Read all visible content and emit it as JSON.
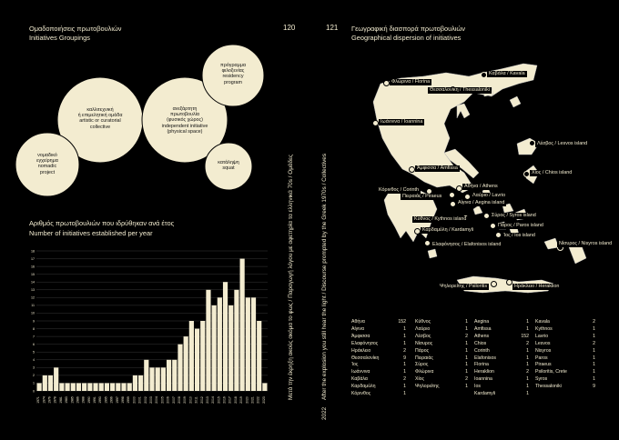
{
  "left": {
    "page_number": "120",
    "title_gr": "Ομαδοποιήσεις πρωτοβουλιών",
    "title_en": "Initiatives Groupings",
    "venn": [
      {
        "lines": [
          "καλλιτεχνική",
          "ή επιμελητική ομάδα",
          "artistic or curatorial",
          "collective"
        ]
      },
      {
        "lines": [
          "ανεξάρτητη",
          "πρωτοβουλία",
          "(φυσικός χώρος)",
          "independent initiative",
          "(physical space)"
        ]
      },
      {
        "lines": [
          "πρόγραμμα",
          "φιλοξενίας",
          "residency",
          "program"
        ]
      },
      {
        "lines": [
          "νομαδικό",
          "εγχείρημα",
          "nomadic",
          "project"
        ]
      },
      {
        "lines": [
          "κατάληψη",
          "squat"
        ]
      }
    ],
    "chart_title_gr": "Αριθμός πρωτοβουλιών που ιδρύθηκαν ανά έτος",
    "chart_title_en": "Number of initiatives established per year"
  },
  "chart_data": {
    "type": "bar",
    "title": "Number of initiatives established per year",
    "categories": [
      "1971",
      "1974",
      "1976",
      "1978",
      "1981",
      "1983",
      "1985",
      "1986",
      "1988",
      "1990",
      "1991",
      "1993",
      "1995",
      "1996",
      "1997",
      "1998",
      "1999",
      "2000",
      "2001",
      "2002",
      "2003",
      "2004",
      "2005",
      "2006",
      "2007",
      "2008",
      "2009",
      "2010",
      "2011",
      "2012",
      "2013",
      "2014",
      "2015",
      "2016",
      "2017",
      "2018",
      "2019",
      "2020",
      "2021",
      "2022",
      "2023"
    ],
    "values": [
      1,
      2,
      2,
      3,
      1,
      1,
      1,
      1,
      1,
      1,
      1,
      1,
      1,
      1,
      1,
      1,
      1,
      2,
      2,
      4,
      3,
      3,
      3,
      4,
      4,
      6,
      7,
      9,
      8,
      9,
      13,
      11,
      12,
      14,
      11,
      13,
      17,
      12,
      12,
      9,
      1
    ],
    "y_ticks": [
      "0",
      "1",
      "2",
      "3",
      "4",
      "5",
      "6",
      "7",
      "8",
      "9",
      "10",
      "11",
      "12",
      "13",
      "14",
      "15",
      "16",
      "17",
      "18"
    ],
    "ylim": [
      0,
      18
    ],
    "grid": true
  },
  "spine": {
    "text": "Μετά την έκρηξη ακούς ακόμα το φως / Παραγωγή λόγου με αφετηρία τα ελληνικά 70s / Ομάδες",
    "text_en": "After the explosion you still hear the light / Discourse prompted by the Greek 1970s / Collectives",
    "year": "2022"
  },
  "right": {
    "page_number": "121",
    "title_gr": "Γεωγραφική διασπορά πρωτοβουλιών",
    "title_en": "Geographical dispersion of initiatives",
    "map_labels": [
      "Φλώρινα / Florina",
      "Καβάλα / Kavala",
      "Θεσσαλονίκη / Thessaloniki",
      "Ιωάννινα / Ioannina",
      "Λέσβος / Lesvos island",
      "Χίος / Chios island",
      "Άμφισσα / Amfissa",
      "Κόρινθος / Corinth",
      "Αθήνα / Athens",
      "Πειραιάς / Piraeus",
      "Λαύριο / Lavrio",
      "Αίγινα / Aegina island",
      "Σύρος / Syros island",
      "Κύθνος / Kythnos island",
      "Πάρος / Paros island",
      "Καρδαμύλη / Kardamyli",
      "Ίος / Ios island",
      "Ελαφόνησος / Elafonisos island",
      "Νίσυρος / Nisyros island",
      "Ψηλορείτης / Psiloritis",
      "Ηράκλειο / Heraklion"
    ],
    "table": [
      [
        [
          "Αθήνα",
          "152"
        ],
        [
          "Αίγινα",
          "1"
        ],
        [
          "Άμφισσα",
          "1"
        ],
        [
          "Ελαφόνησος",
          "1"
        ],
        [
          "Ηράκλειο",
          "2"
        ],
        [
          "Θεσσαλονίκη",
          "9"
        ],
        [
          "Ίος",
          "1"
        ],
        [
          "Ιωάννινα",
          "1"
        ],
        [
          "Καβάλα",
          "2"
        ],
        [
          "Καρδαμύλη",
          "1"
        ],
        [
          "Κόρινθος",
          "1"
        ]
      ],
      [
        [
          "Κύθνος",
          "1"
        ],
        [
          "Λαύριο",
          "1"
        ],
        [
          "Λέσβος",
          "2"
        ],
        [
          "Νίσυρος",
          "1"
        ],
        [
          "Πάρος",
          "1"
        ],
        [
          "Πειραιάς",
          "1"
        ],
        [
          "Σύρος",
          "1"
        ],
        [
          "Φλώρινα",
          "1"
        ],
        [
          "Χίος",
          "2"
        ],
        [
          "Ψηλορείτης",
          "1"
        ]
      ],
      [
        [
          "Aegina",
          "1"
        ],
        [
          "Amfissa",
          "1"
        ],
        [
          "Athens",
          "152"
        ],
        [
          "Chios",
          "2"
        ],
        [
          "Corinth",
          "1"
        ],
        [
          "Elafonisos",
          "1"
        ],
        [
          "Florina",
          "1"
        ],
        [
          "Heraklion",
          "2"
        ],
        [
          "Ioannina",
          "1"
        ],
        [
          "Ios",
          "1"
        ],
        [
          "Kardamyli",
          "1"
        ]
      ],
      [
        [
          "Kavala",
          "2"
        ],
        [
          "Kythnos",
          "1"
        ],
        [
          "Lavrio",
          "1"
        ],
        [
          "Lesvos",
          "2"
        ],
        [
          "Nisyros",
          "1"
        ],
        [
          "Paros",
          "1"
        ],
        [
          "Piraeus",
          "1"
        ],
        [
          "Psiloritis, Crete",
          "1"
        ],
        [
          "Syros",
          "1"
        ],
        [
          "Thessaloniki",
          "9"
        ]
      ]
    ]
  },
  "colors": {
    "background": "#000000",
    "cream": "#f3ecd0"
  }
}
